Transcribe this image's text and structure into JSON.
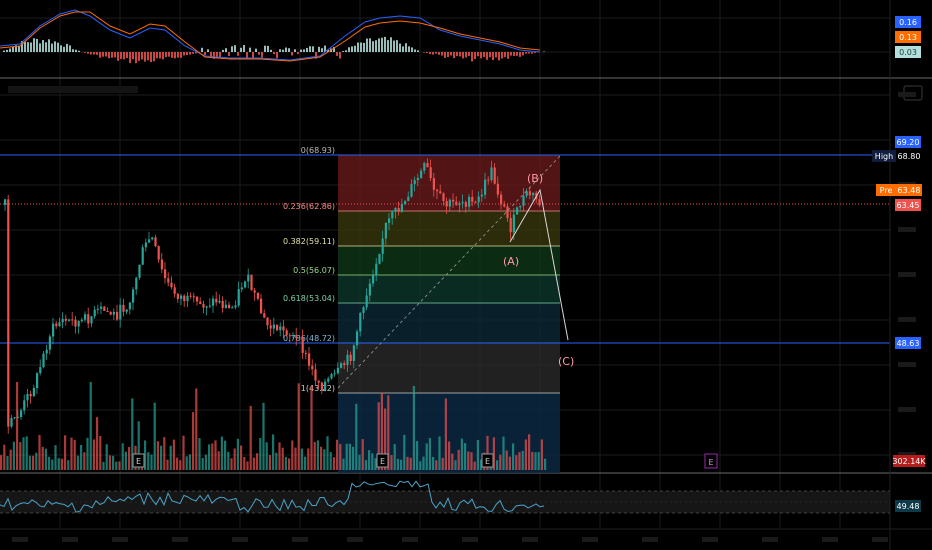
{
  "colors": {
    "up": "#26a69a",
    "down": "#ef5350",
    "grid": "#1b1b1b",
    "blue": "#2962ff",
    "fib0": "#6e1b1b",
    "fib1": "#3b3b0e",
    "fib2": "#0f3a19",
    "fib3": "#0c3a2c",
    "fib4": "#0c2b3a",
    "fib5": "#2c2c2c"
  },
  "macd": {
    "labels": [
      {
        "text": "0.16",
        "color": "#2962ff"
      },
      {
        "text": "0.13",
        "color": "#ff6d00"
      },
      {
        "text": "0.03",
        "color": "#b2dfdb"
      }
    ]
  },
  "price": {
    "high_tag": "High",
    "high_value": "68.80",
    "pre_tag": "Pre",
    "pre_value": "63.48",
    "top_label": "69.20",
    "last_price": "63.45",
    "level_label": "48.63",
    "volume_label": "302.14K"
  },
  "fib": [
    {
      "label": "0(68.93)",
      "color": "#bbbbbb"
    },
    {
      "label": "0.236(62.86)",
      "color": "#f48c8c"
    },
    {
      "label": "0.382(59.11)",
      "color": "#e0e0a0"
    },
    {
      "label": "0.5(56.07)",
      "color": "#9bd88a"
    },
    {
      "label": "0.618(53.04)",
      "color": "#7fd0a8"
    },
    {
      "label": "0.786(48.72)",
      "color": "#7fb7d8"
    },
    {
      "label": "1(43.22)",
      "color": "#cccccc"
    }
  ],
  "waves": {
    "a": "(A)",
    "b": "(B)",
    "c": "(C)"
  },
  "earnings_marker": "E",
  "rsi": {
    "value": "49.48"
  },
  "chart_data": [
    {
      "type": "line",
      "title": "MACD",
      "series": [
        {
          "values": [
            0.16
          ]
        },
        {
          "values": [
            0.13
          ]
        },
        {
          "values": [
            0.03
          ]
        }
      ]
    },
    {
      "type": "candlestick",
      "title": "",
      "fib_retracement": {
        "levels": [
          0,
          0.236,
          0.382,
          0.5,
          0.618,
          0.786,
          1
        ],
        "prices": [
          68.93,
          62.86,
          59.11,
          56.07,
          53.04,
          48.72,
          43.22
        ]
      },
      "high": 68.8,
      "pre_market": 63.48,
      "last": 63.45,
      "horizontal_level": 48.63,
      "elliott_labels": [
        "(A)",
        "(B)",
        "(C)"
      ]
    },
    {
      "type": "bar",
      "title": "Volume",
      "last_value": "302.14K"
    },
    {
      "type": "line",
      "title": "RSI",
      "series": [
        {
          "values": [
            49.48
          ]
        }
      ]
    }
  ]
}
